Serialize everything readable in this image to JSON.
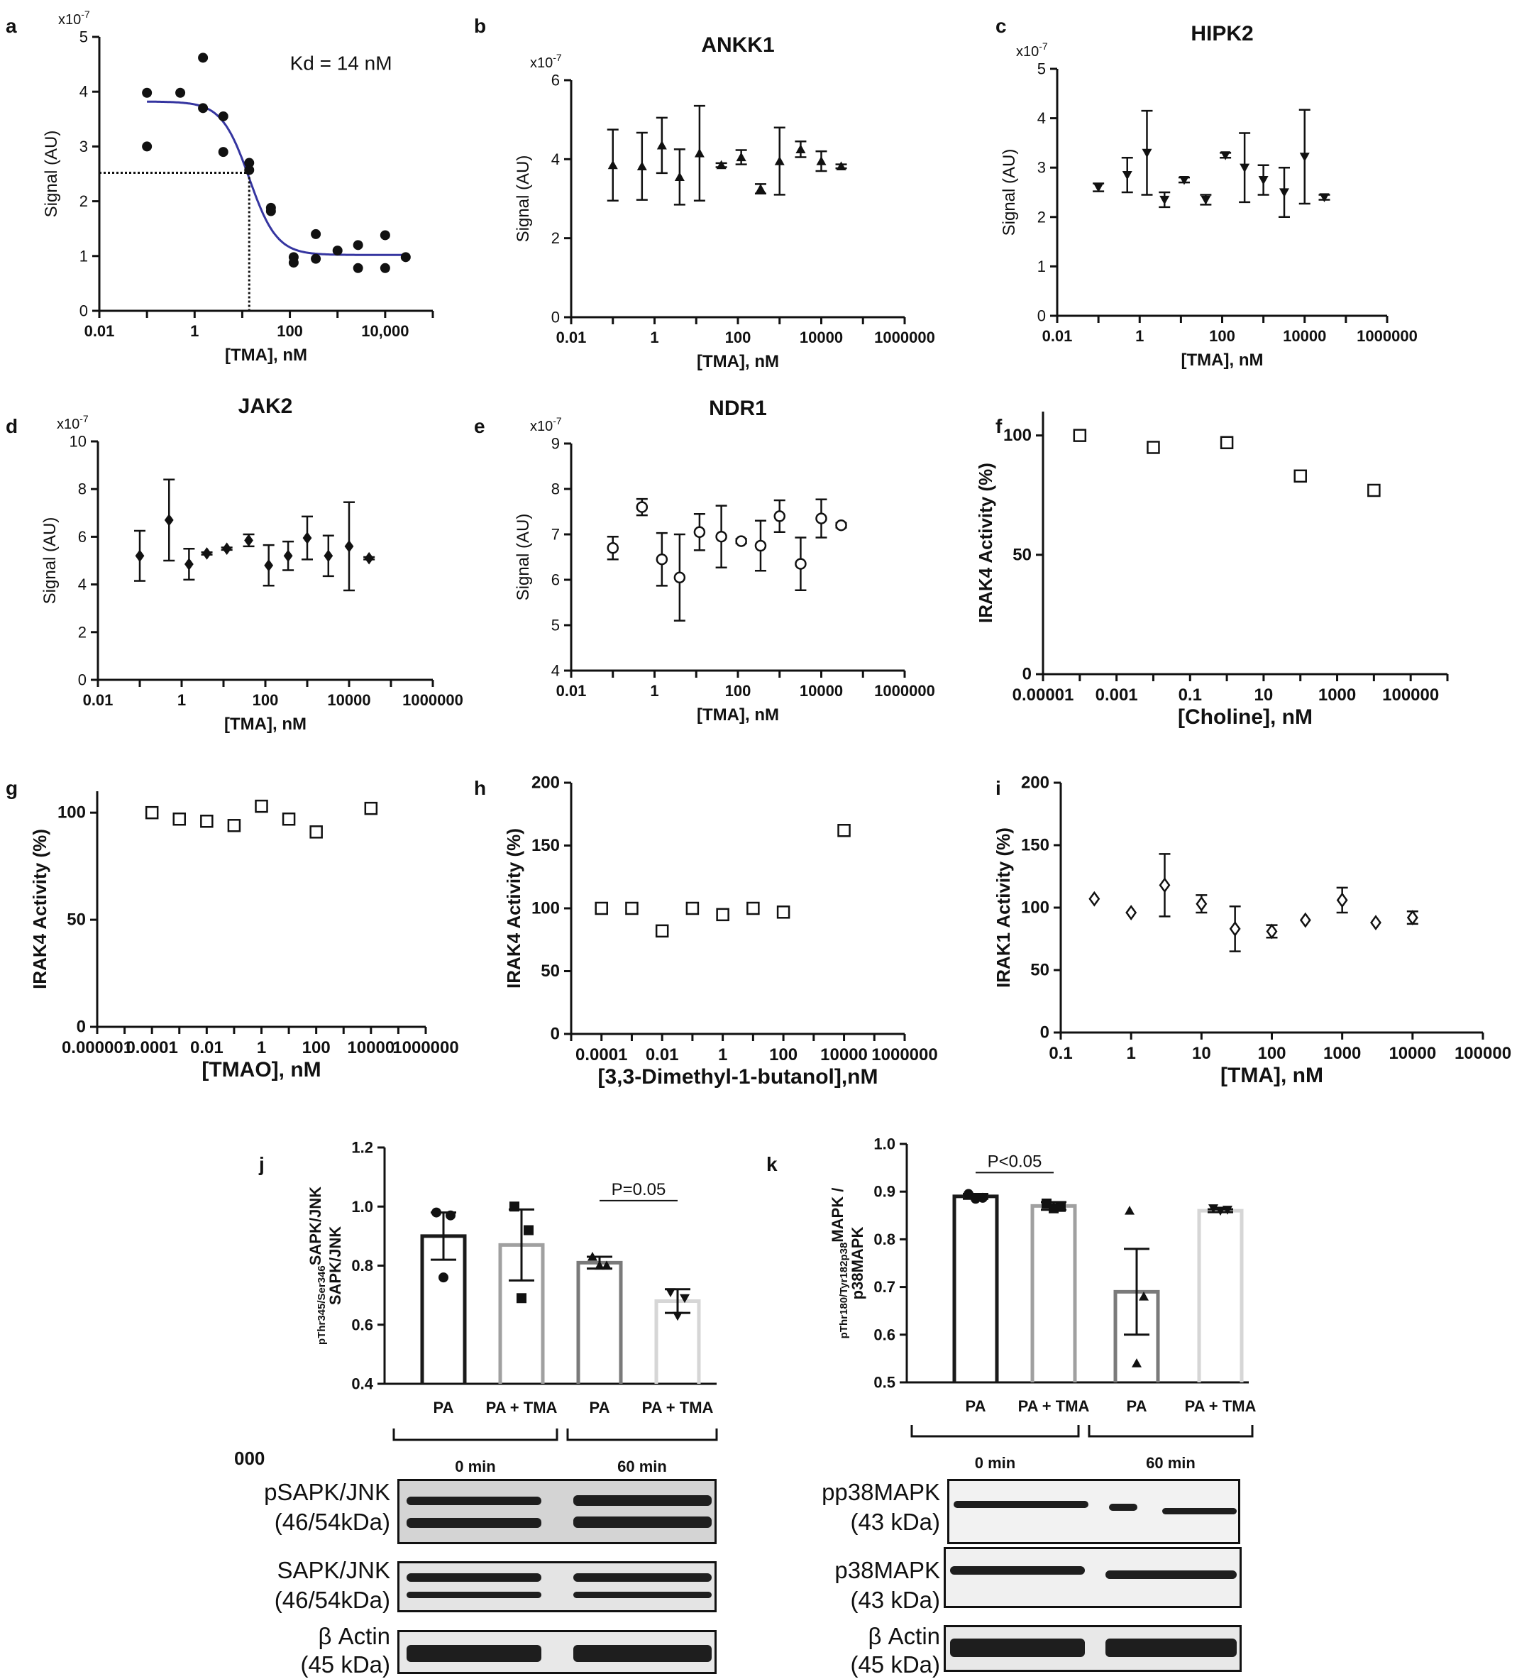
{
  "panels": [
    {
      "id": "a",
      "letter": "a",
      "type": "scatter",
      "xscale": "log",
      "xlim": [
        0.01,
        100000
      ],
      "ylim": [
        0,
        5
      ],
      "xticks": [
        0.01,
        1,
        100,
        10000
      ],
      "xticklabels": [
        "0.01",
        "1",
        "100",
        "10,000"
      ],
      "yticks": [
        0,
        1,
        2,
        3,
        4,
        5
      ],
      "yticklabels": [
        "0",
        "1",
        "2",
        "3",
        "4",
        "5"
      ],
      "multiplier": "x10-7",
      "title": "",
      "xlabel": "[TMA], nM",
      "ylabel": "Signal (AU)",
      "annotation": "Kd = 14 nM",
      "marker": "circle",
      "points": [
        [
          0.1,
          3.98
        ],
        [
          0.1,
          3.0
        ],
        [
          0.5,
          3.98
        ],
        [
          1.5,
          4.62
        ],
        [
          1.5,
          3.7
        ],
        [
          4,
          3.55
        ],
        [
          4,
          2.9
        ],
        [
          14,
          2.7
        ],
        [
          14,
          2.57
        ],
        [
          40,
          1.88
        ],
        [
          40,
          1.82
        ],
        [
          120,
          0.98
        ],
        [
          120,
          0.88
        ],
        [
          350,
          1.4
        ],
        [
          350,
          0.95
        ],
        [
          1000,
          1.1
        ],
        [
          2700,
          1.2
        ],
        [
          2700,
          0.78
        ],
        [
          10000,
          1.38
        ],
        [
          10000,
          0.78
        ],
        [
          27000,
          0.98
        ]
      ],
      "fit": {
        "top": 3.82,
        "bottom": 1.02,
        "ec50": 14,
        "hill": 1.5
      },
      "fit_color": "#3535a0",
      "kd_line": {
        "x": 14,
        "y": 2.52
      }
    },
    {
      "id": "b",
      "letter": "b",
      "type": "scatter",
      "xscale": "log",
      "xlim": [
        0.01,
        1000000
      ],
      "ylim": [
        0,
        6
      ],
      "xticks": [
        0.01,
        1,
        100,
        10000,
        1000000
      ],
      "xticklabels": [
        "0.01",
        "1",
        "100",
        "10000",
        "1000000"
      ],
      "yticks": [
        0,
        2,
        4,
        6
      ],
      "yticklabels": [
        "0",
        "2",
        "4",
        "6"
      ],
      "multiplier": "x10-7",
      "title": "ANKK1",
      "xlabel": "[TMA], nM",
      "ylabel": "Signal (AU)",
      "marker": "triangle-up",
      "points": [
        [
          0.1,
          3.85,
          0.9
        ],
        [
          0.5,
          3.82,
          0.85
        ],
        [
          1.5,
          4.35,
          0.7
        ],
        [
          4,
          3.55,
          0.7
        ],
        [
          12,
          4.15,
          1.2
        ],
        [
          40,
          3.85,
          0.05
        ],
        [
          120,
          4.05,
          0.18
        ],
        [
          350,
          3.25,
          0.12
        ],
        [
          1000,
          3.95,
          0.85
        ],
        [
          3200,
          4.25,
          0.2
        ],
        [
          10000,
          3.95,
          0.25
        ],
        [
          30000,
          3.82,
          0.05
        ]
      ]
    },
    {
      "id": "c",
      "letter": "c",
      "type": "scatter",
      "xscale": "log",
      "xlim": [
        0.01,
        1000000
      ],
      "ylim": [
        0,
        5
      ],
      "xticks": [
        0.01,
        1,
        100,
        10000,
        1000000
      ],
      "xticklabels": [
        "0.01",
        "1",
        "100",
        "10000",
        "1000000"
      ],
      "yticks": [
        0,
        1,
        2,
        3,
        4,
        5
      ],
      "yticklabels": [
        "0",
        "1",
        "2",
        "3",
        "4",
        "5"
      ],
      "multiplier": "x10-7",
      "title": "HIPK2",
      "xlabel": "[TMA], nM",
      "ylabel": "Signal (AU)",
      "marker": "triangle-down",
      "points": [
        [
          0.1,
          2.6,
          0.08
        ],
        [
          0.5,
          2.85,
          0.35
        ],
        [
          1.5,
          3.3,
          0.85
        ],
        [
          4,
          2.35,
          0.15
        ],
        [
          12,
          2.75,
          0.05
        ],
        [
          40,
          2.35,
          0.1
        ],
        [
          120,
          3.25,
          0.05
        ],
        [
          350,
          3.0,
          0.7
        ],
        [
          1000,
          2.75,
          0.3
        ],
        [
          3200,
          2.5,
          0.5
        ],
        [
          10000,
          3.22,
          0.95
        ],
        [
          30000,
          2.4,
          0.05
        ]
      ]
    },
    {
      "id": "d",
      "letter": "d",
      "type": "scatter",
      "xscale": "log",
      "xlim": [
        0.01,
        1000000
      ],
      "ylim": [
        0,
        10
      ],
      "xticks": [
        0.01,
        1,
        100,
        10000,
        1000000
      ],
      "xticklabels": [
        "0.01",
        "1",
        "100",
        "10000",
        "1000000"
      ],
      "yticks": [
        0,
        2,
        4,
        6,
        8,
        10
      ],
      "yticklabels": [
        "0",
        "2",
        "4",
        "6",
        "8",
        "10"
      ],
      "multiplier": "x10-7",
      "title": "JAK2",
      "xlabel": "[TMA], nM",
      "ylabel": "Signal (AU)",
      "marker": "diamond",
      "points": [
        [
          0.1,
          5.2,
          1.05
        ],
        [
          0.5,
          6.7,
          1.7
        ],
        [
          1.5,
          4.85,
          0.65
        ],
        [
          4,
          5.3,
          0.05
        ],
        [
          12,
          5.5,
          0.05
        ],
        [
          40,
          5.85,
          0.25
        ],
        [
          120,
          4.8,
          0.85
        ],
        [
          350,
          5.2,
          0.6
        ],
        [
          1000,
          5.95,
          0.9
        ],
        [
          3200,
          5.2,
          0.85
        ],
        [
          10000,
          5.6,
          1.85
        ],
        [
          30000,
          5.1,
          0.05
        ]
      ]
    },
    {
      "id": "e",
      "letter": "e",
      "type": "scatter",
      "xscale": "log",
      "xlim": [
        0.01,
        1000000
      ],
      "ylim": [
        4,
        9
      ],
      "xticks": [
        0.01,
        1,
        100,
        10000,
        1000000
      ],
      "xticklabels": [
        "0.01",
        "1",
        "100",
        "10000",
        "1000000"
      ],
      "yticks": [
        4,
        5,
        6,
        7,
        8,
        9
      ],
      "yticklabels": [
        "4",
        "5",
        "6",
        "7",
        "8",
        "9"
      ],
      "multiplier": "x10-7",
      "title": "NDR1",
      "xlabel": "[TMA], nM",
      "ylabel": "Signal (AU)",
      "marker": "circle-open",
      "points": [
        [
          0.1,
          6.7,
          0.25
        ],
        [
          0.5,
          7.6,
          0.18
        ],
        [
          1.5,
          6.45,
          0.58
        ],
        [
          4,
          6.05,
          0.95
        ],
        [
          12,
          7.05,
          0.4
        ],
        [
          40,
          6.95,
          0.68
        ],
        [
          120,
          6.85,
          0.05
        ],
        [
          350,
          6.75,
          0.55
        ],
        [
          1000,
          7.4,
          0.35
        ],
        [
          3200,
          6.35,
          0.58
        ],
        [
          10000,
          7.35,
          0.42
        ],
        [
          30000,
          7.2,
          0.05
        ]
      ]
    },
    {
      "id": "f",
      "letter": "f",
      "type": "scatter",
      "xscale": "log",
      "xlim": [
        1e-05,
        1000000
      ],
      "ylim": [
        0,
        110
      ],
      "xticks": [
        1e-05,
        0.001,
        0.1,
        10,
        1000,
        100000
      ],
      "xticklabels": [
        "0.00001",
        "0.001",
        "0.1",
        "10",
        "1000",
        "100000"
      ],
      "yticks": [
        0,
        50,
        100
      ],
      "yticklabels": [
        "0",
        "50",
        "100"
      ],
      "multiplier": "",
      "title": "",
      "xlabel": "[Choline], nM",
      "ylabel": "IRAK4 Activity (%)",
      "marker": "square-open",
      "points": [
        [
          0.0001,
          100
        ],
        [
          0.01,
          95
        ],
        [
          1,
          97
        ],
        [
          100,
          83
        ],
        [
          10000,
          77
        ]
      ]
    },
    {
      "id": "g",
      "letter": "g",
      "type": "scatter",
      "xscale": "log",
      "xlim": [
        1e-06,
        1000000
      ],
      "ylim": [
        0,
        110
      ],
      "xticks": [
        1e-06,
        0.0001,
        0.01,
        1,
        100,
        10000,
        1000000
      ],
      "xticklabels": [
        "0.000001",
        "0.0001",
        "0.01",
        "1",
        "100",
        "10000",
        "1000000"
      ],
      "yticks": [
        0,
        50,
        100
      ],
      "yticklabels": [
        "0",
        "50",
        "100"
      ],
      "multiplier": "",
      "title": "",
      "xlabel": "[TMAO], nM",
      "ylabel": "IRAK4 Activity (%)",
      "marker": "square-open",
      "points": [
        [
          0.0001,
          100
        ],
        [
          0.001,
          97
        ],
        [
          0.01,
          96
        ],
        [
          0.1,
          94
        ],
        [
          1,
          103
        ],
        [
          10,
          97
        ],
        [
          100,
          91
        ],
        [
          10000,
          102
        ]
      ]
    },
    {
      "id": "h",
      "letter": "h",
      "type": "scatter",
      "xscale": "log",
      "xlim": [
        1e-05,
        1000000
      ],
      "ylim": [
        0,
        200
      ],
      "xticks": [
        0.0001,
        0.01,
        1,
        100,
        10000,
        1000000
      ],
      "xticklabels": [
        "0.0001",
        "0.01",
        "1",
        "100",
        "10000",
        "1000000"
      ],
      "yticks": [
        0,
        50,
        100,
        150,
        200
      ],
      "yticklabels": [
        "0",
        "50",
        "100",
        "150",
        "200"
      ],
      "multiplier": "",
      "title": "",
      "xlabel": "[3,3-Dimethyl-1-butanol],nM",
      "ylabel": "IRAK4 Activity (%)",
      "marker": "square-open",
      "points": [
        [
          0.0001,
          100
        ],
        [
          0.001,
          100
        ],
        [
          0.01,
          82
        ],
        [
          0.1,
          100
        ],
        [
          1,
          95
        ],
        [
          10,
          100
        ],
        [
          100,
          97
        ],
        [
          10000,
          162
        ]
      ]
    },
    {
      "id": "i",
      "letter": "i",
      "type": "scatter",
      "xscale": "log",
      "xlim": [
        0.1,
        100000
      ],
      "ylim": [
        0,
        200
      ],
      "xticks": [
        0.1,
        1,
        10,
        100,
        1000,
        10000,
        100000
      ],
      "xticklabels": [
        "0.1",
        "1",
        "10",
        "100",
        "1000",
        "10000",
        "100000"
      ],
      "yticks": [
        0,
        50,
        100,
        150,
        200
      ],
      "yticklabels": [
        "0",
        "50",
        "100",
        "150",
        "200"
      ],
      "multiplier": "",
      "title": "",
      "xlabel": "[TMA], nM",
      "ylabel": "IRAK1 Activity (%)",
      "marker": "diamond-open",
      "points": [
        [
          0.3,
          107,
          0
        ],
        [
          1,
          96,
          0
        ],
        [
          3,
          118,
          25
        ],
        [
          10,
          103,
          7
        ],
        [
          30,
          83,
          18
        ],
        [
          100,
          81,
          5
        ],
        [
          300,
          90,
          0
        ],
        [
          1000,
          106,
          10
        ],
        [
          3000,
          88,
          0
        ],
        [
          10000,
          92,
          5
        ]
      ]
    },
    {
      "id": "j",
      "letter": "j",
      "type": "bar",
      "ylim": [
        0.4,
        1.2
      ],
      "yticks": [
        0.4,
        0.6,
        0.8,
        1.0,
        1.2
      ],
      "yticklabels": [
        "0.4",
        "0.6",
        "0.8",
        "1.0",
        "1.2"
      ],
      "ylabel_main": "SAPK/JNK",
      "ylabel_sub": "pThr345/Ser346",
      "ylabel_line2": "SAPK/JNK",
      "categories": [
        "PA",
        "PA + TMA",
        "PA",
        "PA + TMA"
      ],
      "values": [
        0.9,
        0.87,
        0.81,
        0.68
      ],
      "sem": [
        0.08,
        0.12,
        0.02,
        0.04
      ],
      "colors": [
        "#1a1a1a",
        "#a0a0a0",
        "#7a7a7a",
        "#d6d6d6"
      ],
      "points": [
        [
          0.98,
          0.97,
          0.76
        ],
        [
          1.0,
          0.92,
          0.69
        ],
        [
          0.83,
          0.8,
          0.8
        ],
        [
          0.71,
          0.69,
          0.63
        ]
      ],
      "markers": [
        "circle",
        "square",
        "triangle-up",
        "triangle-down"
      ],
      "groups": [
        "0 min",
        "60 min"
      ],
      "pvalue": "P=0.05"
    },
    {
      "id": "k",
      "letter": "k",
      "type": "bar",
      "ylim": [
        0.5,
        1.0
      ],
      "yticks": [
        0.5,
        0.6,
        0.7,
        0.8,
        0.9,
        1.0
      ],
      "yticklabels": [
        "0.5",
        "0.6",
        "0.7",
        "0.8",
        "0.9",
        "1.0"
      ],
      "ylabel_main": "MAPK /",
      "ylabel_sub": "pThr180/Tyr182p38",
      "ylabel_line2": "p38MAPK",
      "categories": [
        "PA",
        "PA + TMA",
        "PA",
        "PA + TMA"
      ],
      "values": [
        0.89,
        0.87,
        0.69,
        0.86
      ],
      "sem": [
        0.005,
        0.008,
        0.09,
        0.003
      ],
      "colors": [
        "#1a1a1a",
        "#a0a0a0",
        "#7a7a7a",
        "#d6d6d6"
      ],
      "points": [
        [
          0.895,
          0.887,
          0.885
        ],
        [
          0.875,
          0.868,
          0.865
        ],
        [
          0.86,
          0.68,
          0.54
        ],
        [
          0.865,
          0.862,
          0.86
        ]
      ],
      "markers": [
        "circle",
        "square",
        "triangle-up",
        "triangle-down"
      ],
      "groups": [
        "0 min",
        "60 min"
      ],
      "pvalue": "P<0.05"
    }
  ],
  "blots_j": {
    "corner": "000",
    "rows": [
      {
        "name": "pSAPK/JNK",
        "kda": "(46/54kDa)"
      },
      {
        "name": "SAPK/JNK",
        "kda": "(46/54kDa)"
      },
      {
        "name": "β Actin",
        "kda": "(45 kDa)"
      }
    ]
  },
  "blots_k": {
    "rows": [
      {
        "name": "pp38MAPK",
        "kda": "(43 kDa)"
      },
      {
        "name": "p38MAPK",
        "kda": "(43 kDa)"
      },
      {
        "name": "β Actin",
        "kda": "(45 kDa)"
      }
    ]
  }
}
